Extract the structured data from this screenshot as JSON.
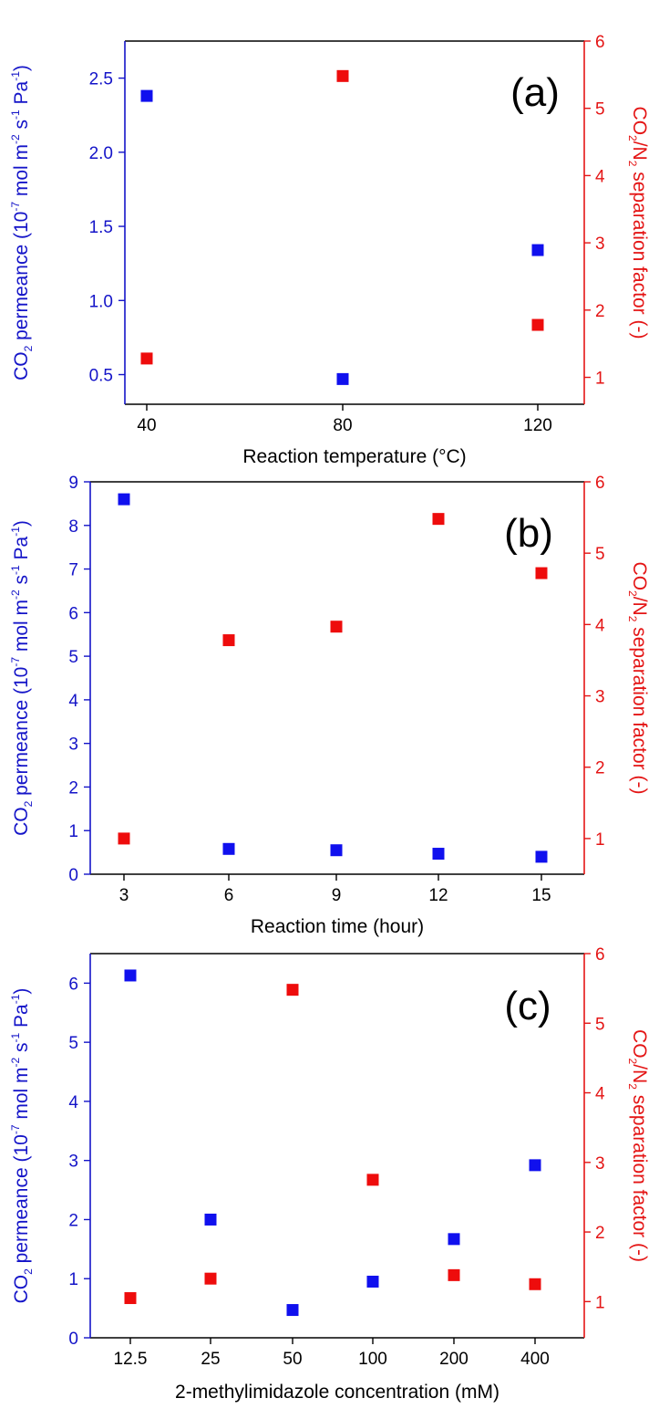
{
  "colors": {
    "left_axis": "#1414c8",
    "right_axis": "#e41515",
    "frame": "#000000",
    "marker_left": "#1010ee",
    "marker_right": "#ee0c0c"
  },
  "y_left_title": {
    "pre": "CO",
    "sub1": "2",
    "mid": " permeance (10",
    "sup1": "-7",
    "mid2": " mol m",
    "sup2": "-2",
    "mid3": " s",
    "sup3": "-1",
    "mid4": " Pa",
    "sup4": "-1",
    "post": ")"
  },
  "y_right_title": {
    "pre": "CO",
    "sub1": "2",
    "mid": "/N",
    "sub2": "2",
    "post": " separation factor (-)"
  },
  "chart_data": [
    {
      "type": "scatter",
      "panel_label": "(a)",
      "xlabel": "Reaction temperature (°C)",
      "x_scale": "categorical",
      "categories": [
        "40",
        "80",
        "120"
      ],
      "x_tick_labels": [
        "40",
        "80",
        "120"
      ],
      "y_left": {
        "ylim": [
          0.3,
          2.75
        ],
        "ticks": [
          "0.5",
          "1.0",
          "1.5",
          "2.0",
          "2.5"
        ]
      },
      "y_right": {
        "ylim": [
          0.6,
          6.0
        ],
        "ticks": [
          "1",
          "2",
          "3",
          "4",
          "5",
          "6"
        ]
      },
      "series": [
        {
          "axis": "left",
          "values": [
            2.38,
            0.47,
            1.34
          ]
        },
        {
          "axis": "right",
          "values": [
            1.28,
            5.48,
            1.78
          ]
        }
      ]
    },
    {
      "type": "scatter",
      "panel_label": "(b)",
      "xlabel": "Reaction time (hour)",
      "x_scale": "categorical",
      "categories": [
        "3",
        "6",
        "9",
        "12",
        "15"
      ],
      "x_tick_labels": [
        "3",
        "6",
        "9",
        "12",
        "15"
      ],
      "y_left": {
        "ylim": [
          0,
          9
        ],
        "ticks": [
          "0",
          "1",
          "2",
          "3",
          "4",
          "5",
          "6",
          "7",
          "8",
          "9"
        ]
      },
      "y_right": {
        "ylim": [
          0.5,
          6.0
        ],
        "ticks": [
          "1",
          "2",
          "3",
          "4",
          "5",
          "6"
        ]
      },
      "series": [
        {
          "axis": "left",
          "values": [
            8.6,
            0.58,
            0.55,
            0.47,
            0.4
          ]
        },
        {
          "axis": "right",
          "values": [
            1.0,
            3.78,
            3.97,
            5.48,
            4.72
          ]
        }
      ]
    },
    {
      "type": "scatter",
      "panel_label": "(c)",
      "xlabel": "2-methylimidazole concentration (mM)",
      "x_scale": "categorical",
      "categories": [
        "12.5",
        "25",
        "50",
        "100",
        "200",
        "400"
      ],
      "x_tick_labels": [
        "12.5",
        "25",
        "50",
        "100",
        "200",
        "400"
      ],
      "y_left": {
        "ylim": [
          0,
          6.5
        ],
        "ticks": [
          "0",
          "1",
          "2",
          "3",
          "4",
          "5",
          "6"
        ]
      },
      "y_right": {
        "ylim": [
          0.48,
          6.0
        ],
        "ticks": [
          "1",
          "2",
          "3",
          "4",
          "5",
          "6"
        ]
      },
      "series": [
        {
          "axis": "left",
          "values": [
            6.13,
            2.0,
            0.47,
            0.95,
            1.67,
            2.92
          ]
        },
        {
          "axis": "right",
          "values": [
            1.05,
            1.33,
            5.48,
            2.75,
            1.38,
            1.25
          ]
        }
      ]
    }
  ]
}
